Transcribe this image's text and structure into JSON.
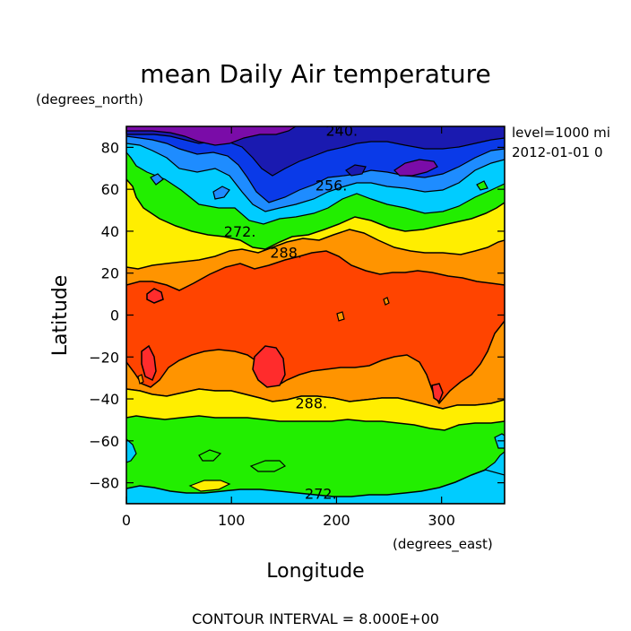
{
  "chart_data": {
    "type": "contour",
    "title": "mean Daily Air temperature",
    "ylabel": "Latitude",
    "xlabel": "Longitude",
    "y_units": "(degrees_north)",
    "x_units": "(degrees_east)",
    "annotations": [
      "level=1000 mi",
      "2012-01-01 0"
    ],
    "footer": "CONTOUR INTERVAL = 8.000E+00",
    "contour_interval": 8,
    "xlim": [
      0,
      360
    ],
    "ylim": [
      -90,
      90
    ],
    "x_ticks": [
      0,
      100,
      200,
      300
    ],
    "x_tick_labels": [
      "0",
      "100",
      "200",
      "300"
    ],
    "y_ticks": [
      80,
      60,
      40,
      20,
      0,
      -20,
      -40,
      -60,
      -80
    ],
    "y_tick_labels": [
      "80",
      "60",
      "40",
      "20",
      "0",
      "−20",
      "−40",
      "−60",
      "−80"
    ],
    "contour_labels": [
      {
        "text": "240.",
        "lon": 205,
        "lat": 88
      },
      {
        "text": "256.",
        "lon": 195,
        "lat": 62
      },
      {
        "text": "272.",
        "lon": 108,
        "lat": 40
      },
      {
        "text": "288.",
        "lon": 152,
        "lat": 30
      },
      {
        "text": "288.",
        "lon": 176,
        "lat": -42
      },
      {
        "text": "272.",
        "lon": 185,
        "lat": -85
      }
    ],
    "palette": {
      "below_240": "#7a0ca8",
      "240_248": "#1a1ab0",
      "248_256": "#0a3ae8",
      "256_264": "#1e8cff",
      "264_272": "#00ccff",
      "272_280": "#22ee00",
      "280_288": "#ffee00",
      "288_296": "#ff9400",
      "296_304": "#ff4400",
      "304_312": "#ff2c2c"
    }
  }
}
